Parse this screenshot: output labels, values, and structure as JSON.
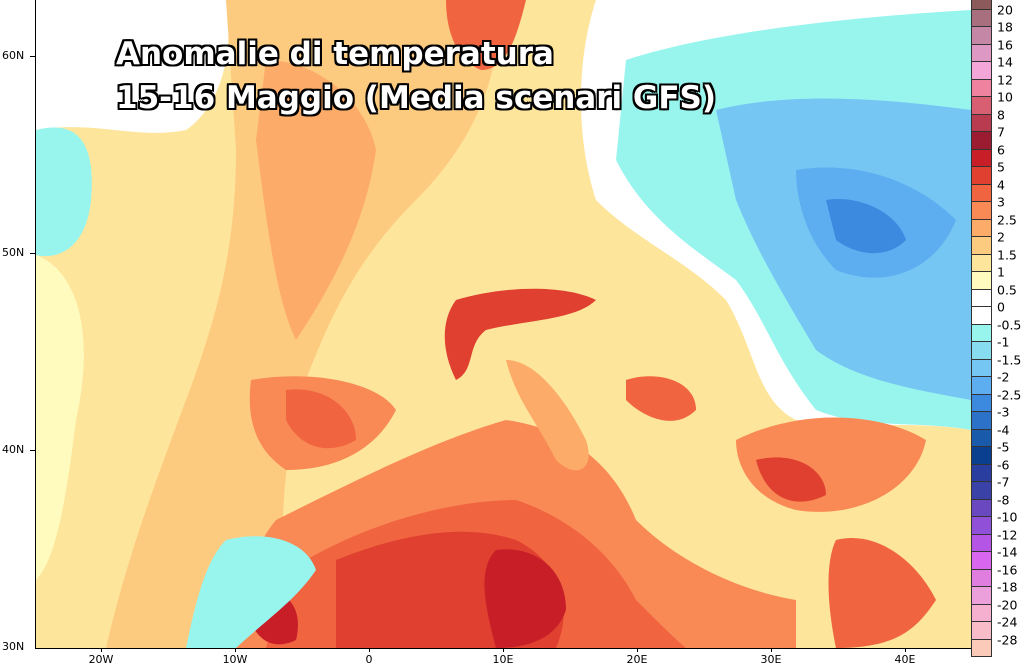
{
  "title": {
    "line1": "Anomalie di temperatura",
    "line2": "15-16 Maggio (Media scenari GFS)"
  },
  "axes": {
    "lat_labels": [
      "60N",
      "50N",
      "40N",
      "30N"
    ],
    "lon_labels": [
      "20W",
      "10W",
      "0",
      "10E",
      "20E",
      "30E",
      "40E"
    ]
  },
  "colorbar": {
    "labels": [
      "20",
      "18",
      "16",
      "14",
      "12",
      "10",
      "8",
      "7",
      "6",
      "5",
      "4",
      "3",
      "2.5",
      "2",
      "1.5",
      "1",
      "0.5",
      "0",
      "-0.5",
      "-1",
      "-1.5",
      "-2",
      "-2.5",
      "-3",
      "-4",
      "-5",
      "-6",
      "-7",
      "-8",
      "-10",
      "-12",
      "-14",
      "-16",
      "-18",
      "-20",
      "-24",
      "-28"
    ],
    "colors": [
      "#8c5a5a",
      "#a8707f",
      "#c487a6",
      "#dd98c4",
      "#f5a6d8",
      "#ee829f",
      "#d85f72",
      "#b83b50",
      "#9b1c30",
      "#c81e27",
      "#e04030",
      "#f06440",
      "#f98a55",
      "#fcac68",
      "#fdcb80",
      "#fee59c",
      "#fffbbf",
      "#ffffff",
      "#ffffff",
      "#98f5ee",
      "#88dcf0",
      "#76c6f4",
      "#5caef0",
      "#3c8ae0",
      "#2c72c8",
      "#1a5aaa",
      "#0a3f90",
      "#2a3ea0",
      "#3a42a8",
      "#6a48c0",
      "#9050d8",
      "#b455e6",
      "#d866ee",
      "#e07ee0",
      "#eba0dc",
      "#f5b0d0",
      "#f8bcc8",
      "#fccab8"
    ]
  }
}
